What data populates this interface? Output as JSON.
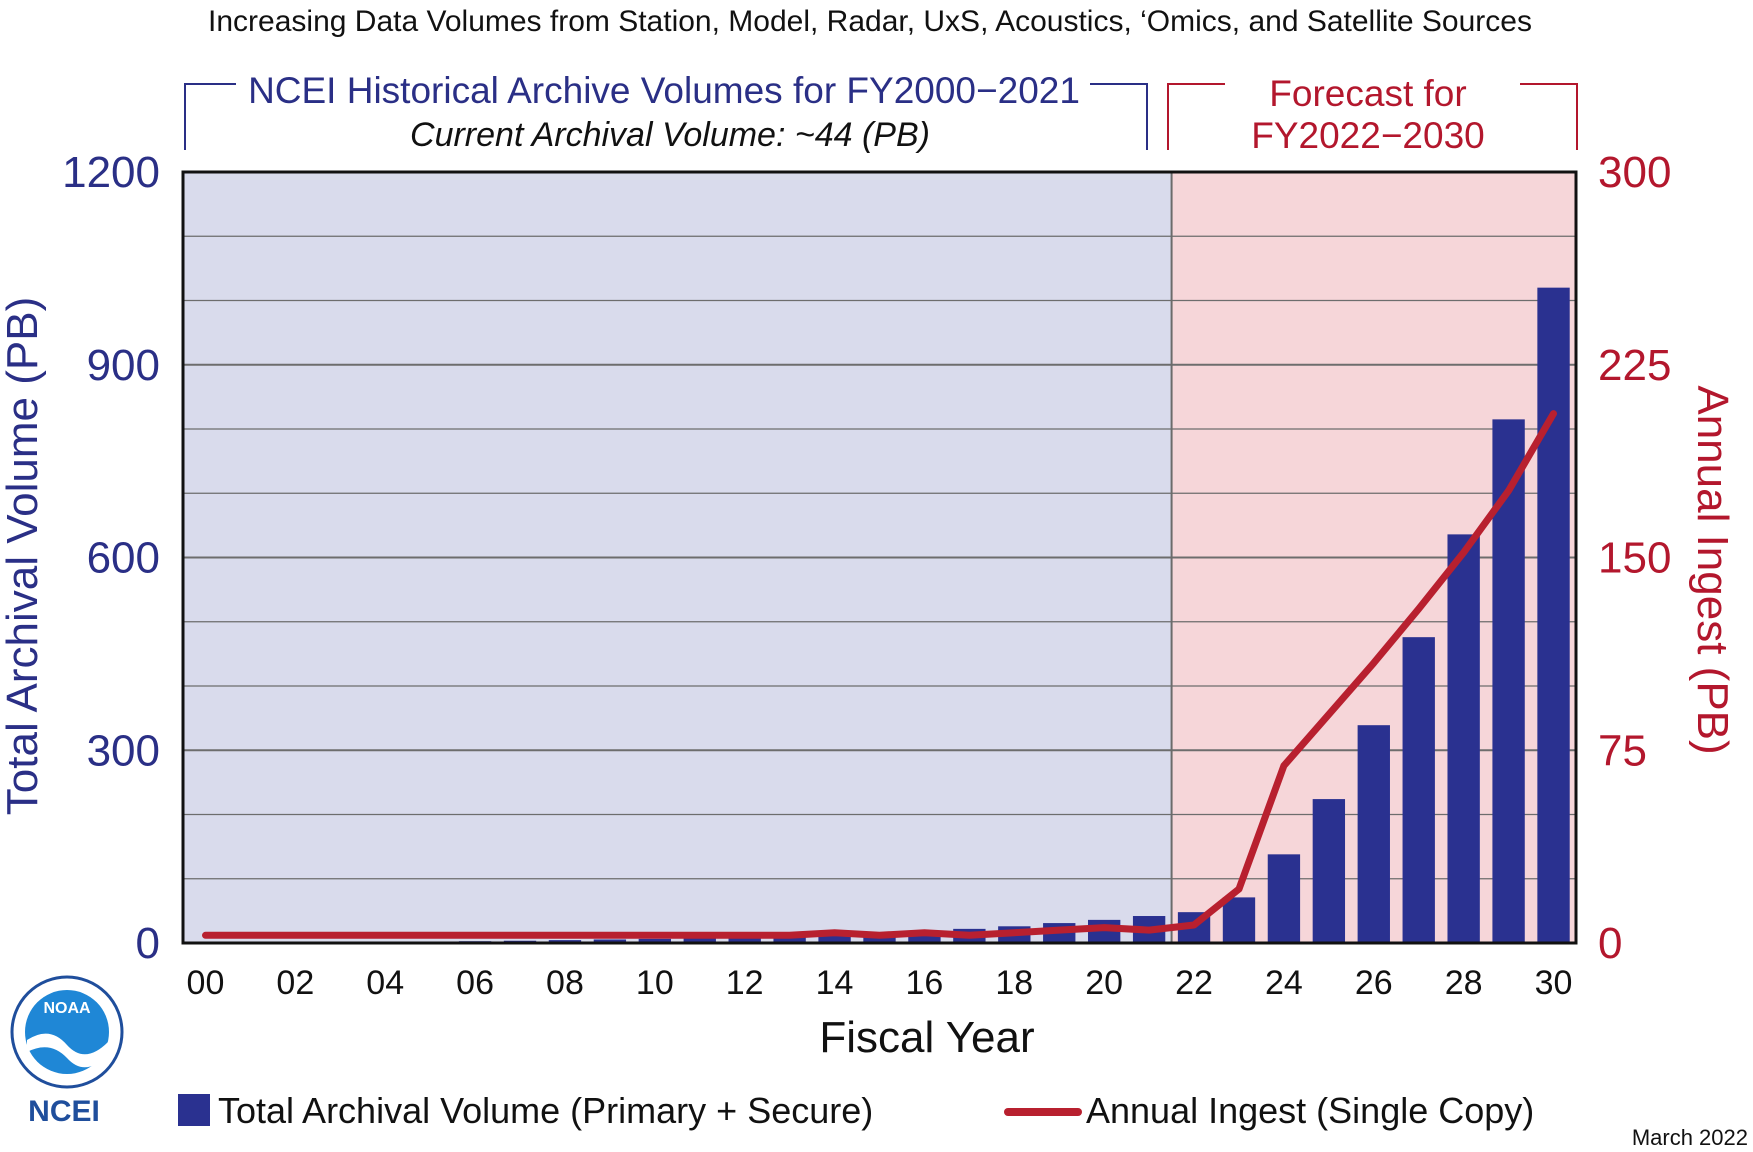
{
  "colors": {
    "bar": "#2a3190",
    "line": "#b8202f",
    "history_bg": "#d9dbec",
    "forecast_bg": "#f6d6d9",
    "blue_text": "#2a2f86",
    "red_text": "#b3172d"
  },
  "logo": {
    "org_label": "NCEI",
    "seal_text": "NOAA"
  },
  "date_note": "March 2022",
  "chart_data": {
    "type": "bar",
    "title": "Increasing Data Volumes from Station, Model, Radar, UxS, Acoustics, ‘Omics, and Satellite Sources",
    "header_history": "NCEI Historical Archive Volumes for FY2000−2021",
    "header_current": "Current Archival Volume: ~44 (PB)",
    "header_forecast_line1": "Forecast for",
    "header_forecast_line2": "FY2022−2030",
    "xlabel": "Fiscal Year",
    "ylabel": "Total Archival Volume (PB)",
    "ylabel_right": "Annual Ingest (PB)",
    "ylim": [
      0,
      1200
    ],
    "ylim_right": [
      0,
      300
    ],
    "yticks": [
      "0",
      "300",
      "600",
      "900",
      "1200"
    ],
    "yticks_right": [
      "0",
      "75",
      "150",
      "225",
      "300"
    ],
    "categories": [
      "00",
      "01",
      "02",
      "03",
      "04",
      "05",
      "06",
      "07",
      "08",
      "09",
      "10",
      "11",
      "12",
      "13",
      "14",
      "15",
      "16",
      "17",
      "18",
      "19",
      "20",
      "21",
      "22",
      "23",
      "24",
      "25",
      "26",
      "27",
      "28",
      "29",
      "30"
    ],
    "xticks": [
      "00",
      "02",
      "04",
      "06",
      "08",
      "10",
      "12",
      "14",
      "16",
      "18",
      "20",
      "22",
      "24",
      "26",
      "28",
      "30"
    ],
    "history_end": "21",
    "series": [
      {
        "name": "Total Archival Volume (Primary + Secure)",
        "kind": "bar",
        "axis": "left",
        "values": [
          0.5,
          0.7,
          1,
          1.3,
          1.7,
          2.2,
          2.8,
          3.5,
          4.5,
          5.5,
          6.5,
          7.5,
          9,
          11,
          13,
          15,
          18,
          22,
          26,
          31,
          36,
          42,
          48,
          71,
          138,
          224,
          339,
          476,
          636,
          815,
          1020
        ]
      },
      {
        "name": "Annual Ingest (Single Copy)",
        "kind": "line",
        "axis": "right",
        "values": [
          3,
          3,
          3,
          3,
          3,
          3,
          3,
          3,
          3,
          3,
          3,
          3,
          3,
          3,
          4,
          3,
          4,
          3,
          4,
          5,
          6,
          5,
          7,
          21,
          69,
          89,
          109,
          130,
          152,
          176,
          206
        ]
      }
    ]
  }
}
